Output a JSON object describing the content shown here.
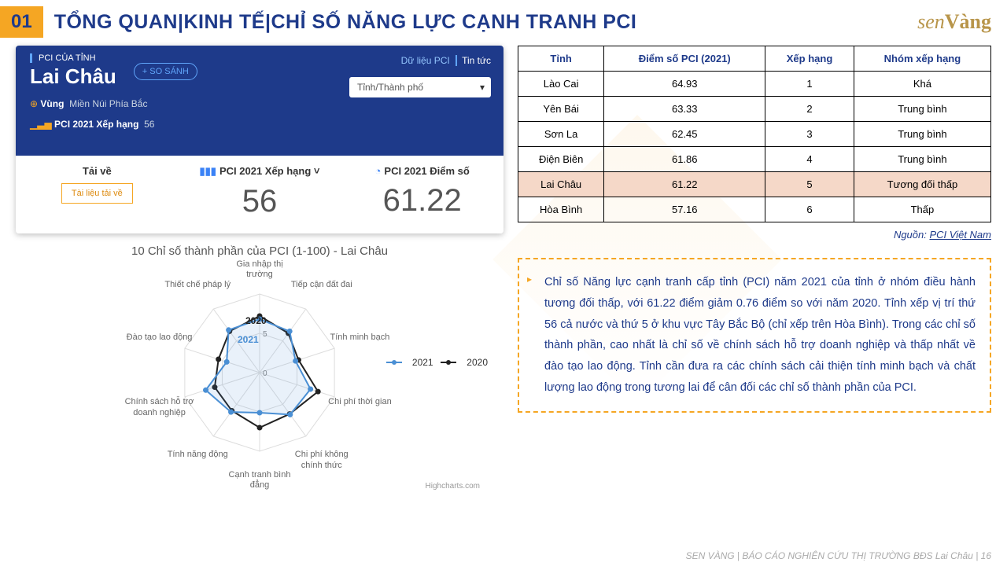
{
  "header": {
    "num": "01",
    "title": "TỔNG QUAN|KINH TẾ|CHỈ SỐ NĂNG LỰC CẠNH TRANH PCI",
    "logo": "senVàng"
  },
  "card": {
    "label": "PCI CỦA TỈNH",
    "province": "Lai Châu",
    "compare": "+ SO SÁNH",
    "link1": "Dữ liệu PCI",
    "link2": "Tin tức",
    "dropdown": "Tỉnh/Thành phố",
    "region_label": "Vùng",
    "region": "Miền Núi Phía Bắc",
    "rank_label": "PCI 2021 Xếp hạng",
    "rank_val": "56",
    "col1_title": "Tải về",
    "download": "Tài liệu tải về",
    "col2_title": "PCI 2021 Xếp hạng",
    "col2_val": "56",
    "col3_title": "PCI 2021 Điểm số",
    "col3_val": "61.22"
  },
  "radar": {
    "title": "10 Chỉ số thành phần của PCI (1-100) - Lai Châu",
    "axes": [
      "Gia nhập thị trường",
      "Tiếp cận đất đai",
      "Tính minh bạch",
      "Chi phí thời gian",
      "Chi phí không chính thức",
      "Cạnh tranh bình đẳng",
      "Tính năng động",
      "Chính sách hỗ trợ doanh nghiệp",
      "Đào tạo lao động",
      "Thiết chế pháp lý"
    ],
    "max": 10,
    "series": {
      "2021": {
        "color": "#4a8fd4",
        "values": [
          6.8,
          6.5,
          4.8,
          6.8,
          6.6,
          5.1,
          6.2,
          7.2,
          4.4,
          6.7
        ]
      },
      "2020": {
        "color": "#222222",
        "values": [
          7.2,
          6.2,
          5.2,
          7.8,
          6.5,
          7.0,
          6.0,
          6.0,
          5.5,
          6.5
        ]
      }
    },
    "year_labels": {
      "y2021": "2021",
      "y2020": "2020"
    },
    "legend_labels": [
      "2021",
      "2020"
    ],
    "credit": "Highcharts.com"
  },
  "table": {
    "headers": [
      "Tỉnh",
      "Điểm số PCI (2021)",
      "Xếp hạng",
      "Nhóm xếp hạng"
    ],
    "rows": [
      {
        "c": [
          "Lào Cai",
          "64.93",
          "1",
          "Khá"
        ],
        "hl": false
      },
      {
        "c": [
          "Yên Bái",
          "63.33",
          "2",
          "Trung bình"
        ],
        "hl": false
      },
      {
        "c": [
          "Sơn La",
          "62.45",
          "3",
          "Trung bình"
        ],
        "hl": false
      },
      {
        "c": [
          "Điện Biên",
          "61.86",
          "4",
          "Trung bình"
        ],
        "hl": false
      },
      {
        "c": [
          "Lai Châu",
          "61.22",
          "5",
          "Tương đối thấp"
        ],
        "hl": true
      },
      {
        "c": [
          "Hòa Bình",
          "57.16",
          "6",
          "Thấp"
        ],
        "hl": false
      }
    ],
    "source_label": "Nguồn:",
    "source_link": "PCI Việt Nam"
  },
  "note": "Chỉ số Năng lực cạnh tranh cấp tỉnh (PCI) năm 2021 của tỉnh ở nhóm điều hành tương đối thấp, với 61.22 điểm giảm 0.76 điểm so với năm 2020. Tỉnh xếp vị trí thứ 56 cả nước và thứ 5 ở khu vực Tây Bắc Bộ (chỉ xếp trên  Hòa Bình). Trong các chỉ số thành phần, cao nhất là chỉ số về chính sách hỗ trợ doanh nghiệp và thấp nhất về đào tạo lao động. Tỉnh cần đưa ra các chính sách cải thiện tính minh bạch và chất lượng lao động trong tương lai để cân đối các chỉ số thành phần của PCI.",
  "footer": "SEN VÀNG | BÁO CÁO NGHIÊN CỨU THỊ TRƯỜNG BĐS  Lai Châu | 16"
}
